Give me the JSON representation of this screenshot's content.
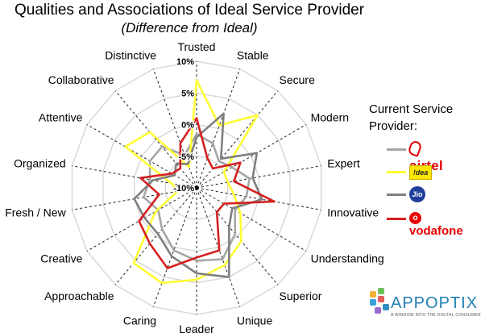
{
  "chart_data": {
    "type": "radar",
    "title": "Qualities and Associations of Ideal Service Provider",
    "subtitle": "(Difference from Ideal)",
    "axes": [
      "Trusted",
      "Stable",
      "Secure",
      "Modern",
      "Expert",
      "Innovative",
      "Understanding",
      "Superior",
      "Unique",
      "Leader",
      "Caring",
      "Approachable",
      "Creative",
      "Fresh / New",
      "Organized",
      "Attentive",
      "Collaborative",
      "Distinctive"
    ],
    "rlim": [
      -10,
      10
    ],
    "ticks": [
      -10,
      -5,
      0,
      5,
      10
    ],
    "tick_labels": [
      "-10%",
      "-5%",
      "0%",
      "5%",
      "10%"
    ],
    "series": [
      {
        "name": "airtel",
        "color": "#a6a6a6",
        "values": [
          -1.5,
          -2.5,
          -4.5,
          -3.5,
          -1.5,
          -2.0,
          -3.0,
          -0.5,
          2.0,
          1.5,
          0.5,
          -1.5,
          -3.0,
          -1.5,
          -2.5,
          -1.5,
          -1.5,
          -4.5
        ]
      },
      {
        "name": "idea",
        "color": "#ffff33",
        "values": [
          7.0,
          0.5,
          5.0,
          -5.0,
          -5.0,
          -4.0,
          -2.0,
          1.0,
          3.0,
          4.5,
          6.0,
          5.5,
          -2.5,
          -7.0,
          -6.0,
          3.0,
          1.5,
          -6.5
        ]
      },
      {
        "name": "jio",
        "color": "#7f7f7f",
        "values": [
          -2.0,
          2.5,
          -4.0,
          1.0,
          -1.0,
          0.5,
          -3.5,
          -2.0,
          5.0,
          3.5,
          1.5,
          -0.5,
          -0.5,
          0.0,
          -3.0,
          -6.0,
          -5.0,
          -6.0
        ]
      },
      {
        "name": "vodafone",
        "color": "#d62020",
        "values": [
          1.0,
          -5.0,
          -6.0,
          -2.0,
          -4.0,
          2.5,
          -5.0,
          -5.0,
          0.5,
          1.0,
          3.5,
          1.5,
          0.5,
          -4.0,
          -1.0,
          -5.5,
          -6.0,
          -2.5
        ]
      }
    ],
    "legend": {
      "title": "Current Service Provider:",
      "placement": "right"
    }
  },
  "legend_entries": [
    {
      "brand": "airtel",
      "glyph": "a",
      "color": "#a6a6a6"
    },
    {
      "brand": "idea",
      "glyph": "!dea",
      "color": "#ffff33"
    },
    {
      "brand": "Jio",
      "glyph": "Jio",
      "color": "#7f7f7f"
    },
    {
      "brand": "vodafone",
      "glyph": "o",
      "color": "#d62020"
    }
  ],
  "logo": {
    "name": "APPOPTIX",
    "tagline": "A WINDOW INTO THE DIGITAL CONSUMER"
  }
}
